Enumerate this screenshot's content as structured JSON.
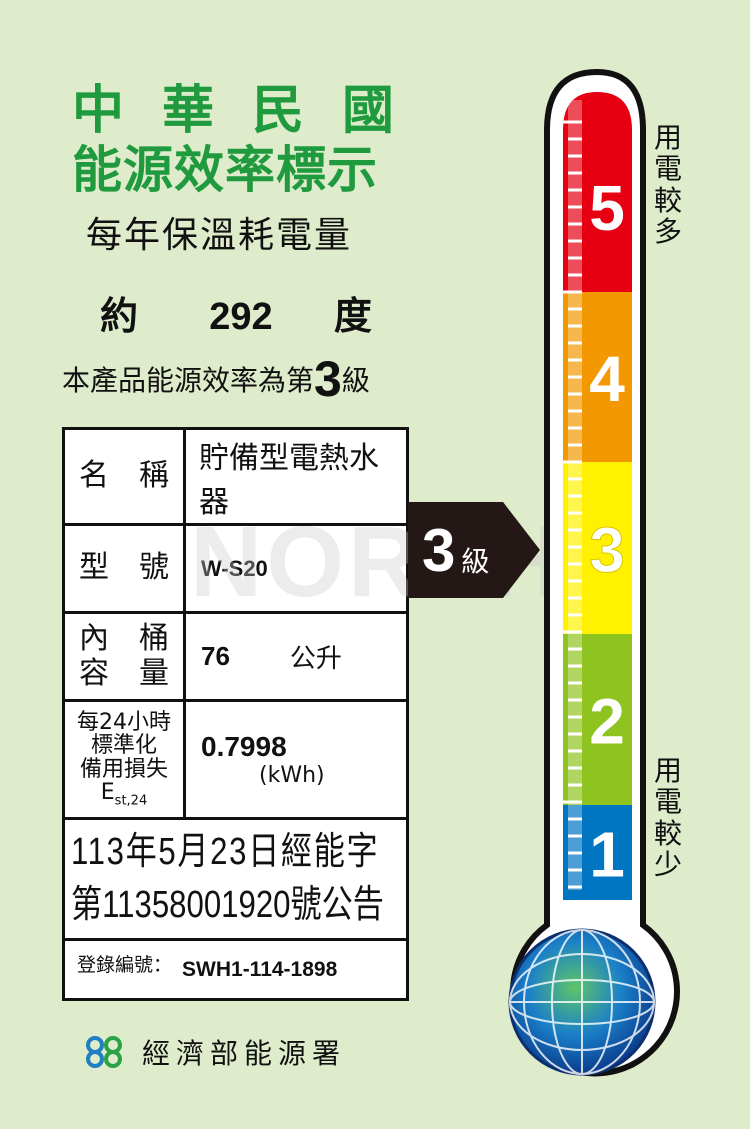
{
  "header": {
    "line1": "中華民國",
    "line2": "能源效率標示",
    "line3": "每年保溫耗電量"
  },
  "consumption": {
    "prefix": "約",
    "value": "292",
    "unit": "度"
  },
  "grade_statement": {
    "text": "本產品能源效率為第",
    "grade": "3",
    "suffix": "級"
  },
  "table": {
    "name_label": "名　稱",
    "name_value": "貯備型電熱水器",
    "model_label": "型　號",
    "model_value": "W-S20",
    "capacity_label_1": "內　桶",
    "capacity_label_2": "容　量",
    "capacity_value": "76",
    "capacity_unit": "公升",
    "loss_label_1": "每24小時",
    "loss_label_2": "標準化",
    "loss_label_3": "備用損失",
    "loss_label_sym": "E",
    "loss_label_sub": "st,24",
    "loss_value": "0.7998",
    "loss_unit": "(kWh)",
    "announce_1": "113年5月23日經能字",
    "announce_2": "第11358001920號公告",
    "reg_label": "登錄編號：",
    "reg_value": "SWH1-114-1898"
  },
  "watermark": "NORTH",
  "arrow": {
    "grade": "3",
    "suffix": "級"
  },
  "thermometer": {
    "levels": [
      {
        "n": "5",
        "color": "#e60012"
      },
      {
        "n": "4",
        "color": "#f39800"
      },
      {
        "n": "3",
        "color": "#fff100"
      },
      {
        "n": "2",
        "color": "#8fc31f"
      },
      {
        "n": "1",
        "color": "#0075c2"
      }
    ],
    "top_label": "用電較多",
    "bottom_label": "用電較少",
    "current_grade": 3
  },
  "footer": {
    "agency": "經濟部能源署",
    "logo_icon": "energy-administration-logo"
  }
}
